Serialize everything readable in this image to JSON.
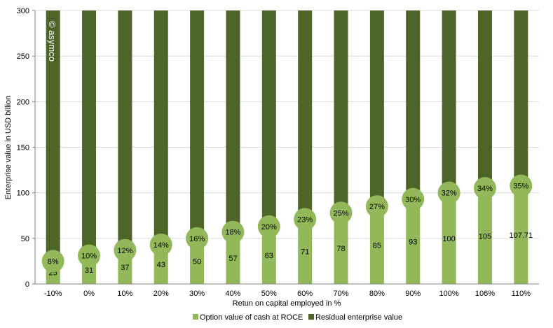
{
  "chart_data": {
    "type": "bar",
    "stacked": true,
    "categories": [
      "-10%",
      "0%",
      "10%",
      "20%",
      "30%",
      "40%",
      "50%",
      "60%",
      "70%",
      "80%",
      "90%",
      "100%",
      "106%",
      "110%"
    ],
    "series": [
      {
        "name": "Option value of cash at ROCE",
        "color": "#92b85a",
        "values": [
          25,
          31,
          37,
          43,
          50,
          57,
          63,
          71,
          78,
          85,
          93,
          100,
          105,
          107.71
        ],
        "labels": [
          "25",
          "31",
          "37",
          "43",
          "50",
          "57",
          "63",
          "71",
          "78",
          "85",
          "93",
          "100",
          "105",
          "107.71"
        ]
      },
      {
        "name": "Residual enterprise value",
        "color": "#4e6529",
        "values": [
          285,
          279,
          273,
          267,
          260,
          253,
          247,
          239,
          232,
          225,
          217,
          210,
          205,
          202.29
        ]
      }
    ],
    "share_labels": [
      "8%",
      "10%",
      "12%",
      "14%",
      "16%",
      "18%",
      "20%",
      "23%",
      "25%",
      "27%",
      "30%",
      "32%",
      "34%",
      "35%"
    ],
    "share_marker_color": "#92b85a",
    "xlabel": "Retun on capital employed in %",
    "ylabel": "Enterprise value in USD billion",
    "ylim": [
      0,
      300
    ],
    "yticks": [
      "0",
      "50",
      "100",
      "150",
      "200",
      "250",
      "300"
    ],
    "legend": "bottom",
    "grid": true,
    "watermark": "© asymco"
  }
}
